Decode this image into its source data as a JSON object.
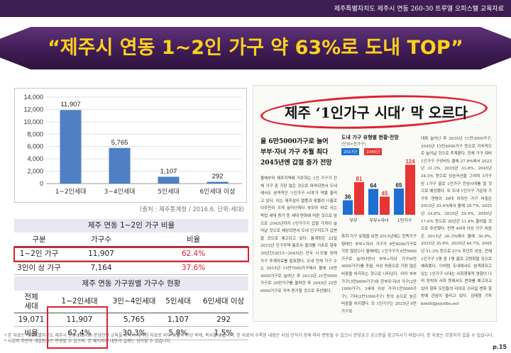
{
  "header": {
    "doc_title": "제주특별자치도 제주시 연동 260-30 트루엘 오피스텔 교육자료"
  },
  "headline": "“제주시 연동 1~2인 가구 약 63%로 도내 TOP”",
  "chart_data": {
    "type": "bar",
    "categories": [
      "1~2인세대",
      "3~4인세대",
      "5인세대",
      "6인세대 이상"
    ],
    "values": [
      11907,
      5765,
      1107,
      292
    ],
    "value_labels": [
      "11,907",
      "5,765",
      "1,107",
      "292"
    ],
    "ylim": [
      0,
      14000
    ],
    "yticks": [
      "0",
      "2,000",
      "4,000",
      "6,000",
      "8,000",
      "10,000",
      "12,000",
      "14,000"
    ],
    "grid": true,
    "bar_color": "#4f7fc4",
    "title": "",
    "xlabel": "",
    "ylabel": ""
  },
  "source_note": "(출처 : 제주통계청 / 2016.6. 단위:세대)",
  "table1": {
    "title": "제주 연동 1~2인 가구 비율",
    "headers": [
      "구분",
      "가구수",
      "비율"
    ],
    "rows": [
      {
        "label": "1~2인 가구",
        "count": "11,907",
        "ratio": "62.4%"
      },
      {
        "label": "3인이 상 가구",
        "count": "7,164",
        "ratio": "37.6%"
      }
    ]
  },
  "table2": {
    "title": "제주 연동 가구원별 가구수 현황",
    "headers": [
      "전체\n세대",
      "1~2인세대",
      "3인~4인세대",
      "5인세대",
      "6인세대 이상"
    ],
    "rows": [
      [
        "19,071",
        "11,907",
        "5,765",
        "1,107",
        "292"
      ],
      [
        "비율",
        "62.4%",
        "30.3%",
        "5.8%",
        "1.5%"
      ]
    ]
  },
  "newspaper": {
    "headline": "제주 ‘1인가구 시대’ 막 오르다",
    "subheads": [
      "올 6만5000가구로 늘어",
      "부부·자녀 가구 추월 최다",
      "2045년엔 갑절 증가 전망"
    ],
    "chart_title": "도내 가구 유형별 현황·전망",
    "chart_unit": "(단위=천가구)",
    "legend": [
      "2017년",
      "2045년"
    ],
    "chart_categories": [
      "부부",
      "부부+자녀",
      "1인가구"
    ],
    "chart_2017": [
      36,
      64,
      65
    ],
    "chart_2045": [
      81,
      45,
      124
    ],
    "col_a": "올해부터 제주지역에 거주하는 1인 가구가 전체 가구 중 가장 많은 것으로 파악되면서 도내에서도 본격적인 '1인가구 시대'가 막을 올리고 있다. 이는 제주살이 열풍과 맞물려 나홀로 이주민이 크게 늘어난데다 부모와 따로 사는 독립 세대 증가 등 세대 변화에 따른 것으로 앞으로 2045년까지 1인가구가 갑절 가까이 늘어날 것으로 예상되면서 도내 인구지도가 급변할 것으로 예고되고 있다. 통계청은 22일 2015년 인구주택 총조사 결과를 기초로 향후 30년간(2015~2045년) 전국 시·도별 장래 가구 추계자료를 발표했다. 도내 전체 가구 수는 2015년 15만7000가구에서 올해 16만4000가구로 늘어난 후 2033년 21만5000가구로 20만가구를 돌파한 후 2045년 22만6000가구로 지속 증가할 것으로 추산됐다.",
    "col_b": "특히 가구 유형을 보면 2015년에는 친족가구 형태인 부부+자녀 가구가 6만4000가구로 가장 많았으나 올해에는 1인가구가 6만5000가구로 늘어나면서 부부+자녀 가구(6만4000가구)를 추월, 사상 처음으로 가장 많은 비중을 차지하는 것으로 나타났다. 이어 부부 가구(3만6000가구)와 한부모·자녀 가구(2만1000가구), 3세대 이상 가구(1만5000가구), 기타(2만1000가구) 등의 순으로 높은 비중을 차지했다. 또 1인가구는 2025년 9만가구로",
    "col_c": "대폭 늘어난 후 2035년 11만3000가구, 2045년 12만4000가구 등으로 지속적으로 늘어날 것으로 추계됐다. 전체 가구 대비 1인가구 구성비도 올해 27.8%에서 2025년 31.3%, 2035년 33.8%, 2045년 34.5% 등으로 상승곡선을 그리며 3가구 당 1가구 꼴로 1인가구 전성시대를 열 것으로 예상됐다. 또 도내 1인가구 가운데 가구주 연령이 30대 이하인 가구 비중은 2015년 29.4%에서 올해 28.7%, 2025년 24.8%, 2035년 20.4%, 2045년 17.6% 등으로 30년간 11.8% 줄어들 것으로 추산됐다. 반면 60대 이상 가구 비중은 2015년 30.3%에서 올해 30.9%, 2025년 35.6%, 2035년 44.7%, 2045년 51.3% 등으로 21% 포인트 상승, 전체 1인가구 2명 중 1명 꼴로 고령화될 것으로 예측됐다. 이처럼 도내에서도 본격화되고 있는 1인가구 시대는 사회경제적 영향이 나며 정치와 사회 등에서도 변화를 예고하고 있어 향후 도민들의 라이프 스타일 변화 향방에 관심이 쏠리고 있다. 김태형 기자 kimth@jejuilbo.net"
  },
  "footnote": "* 본 자료는 제주특별자치도 제주시 연동 260-30 분양인력 교육을 위하여 제작된 자료로 외부 유출과 무단 복제, 복사를 금합니다. 본 자료의 수록된 내용은 사업 인허가 등에 따라 변동될 수 있으니 분양공고 공고문을 참고하시기 바랍니다. 본 자료는 모양자가 있을 수 있습니다. * 사업지 주변의 개발환경은 변경될 수 있으며, 본 페이지의 내용과 실제는 상이할 수 있습니다.",
  "page_number": "p.15"
}
